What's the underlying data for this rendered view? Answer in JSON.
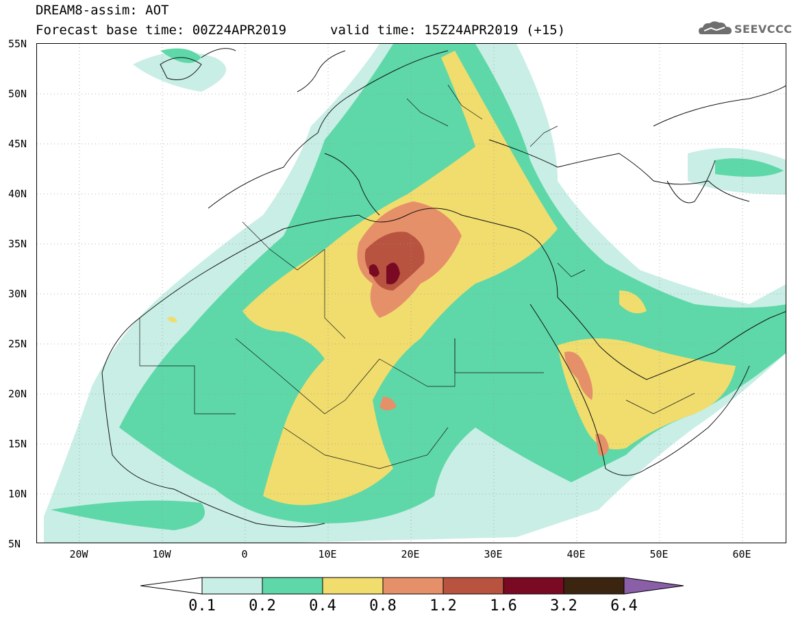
{
  "header": {
    "title_line1": "DREAM8-assim: AOT",
    "title_line2": "Forecast base time: 00Z24APR2019",
    "valid_time": "valid time: 15Z24APR2019 (+15)",
    "logo_text": "SEEVCCC"
  },
  "axes": {
    "lat_labels": [
      "55N",
      "50N",
      "45N",
      "40N",
      "35N",
      "30N",
      "25N",
      "20N",
      "15N",
      "10N",
      "5N"
    ],
    "lon_labels": [
      "20W",
      "10W",
      "0",
      "10E",
      "20E",
      "30E",
      "40E",
      "50E",
      "60E"
    ]
  },
  "colorbar": {
    "levels": [
      "0.1",
      "0.2",
      "0.4",
      "0.8",
      "1.2",
      "1.6",
      "3.2",
      "6.4"
    ],
    "colors": [
      "#ffffff",
      "#c8eee5",
      "#5ed8a8",
      "#f0dd6e",
      "#e69069",
      "#b8533f",
      "#7a0a24",
      "#3b2410",
      "#8a5fa8"
    ]
  }
}
